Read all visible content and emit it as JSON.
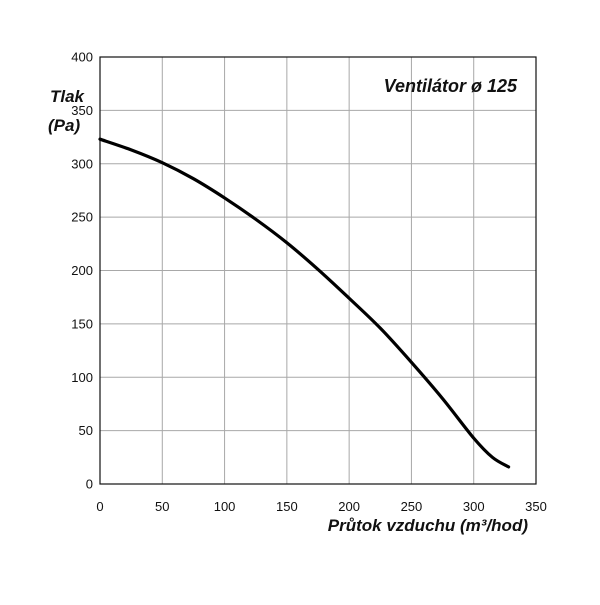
{
  "chart_data": {
    "type": "line",
    "title": "Ventilátor ø 125",
    "ylabel_line1": "Tlak",
    "ylabel_line2": "(Pa)",
    "xlabel": "Průtok vzduchu (m³/hod)",
    "xlim": [
      0,
      350
    ],
    "ylim": [
      0,
      400
    ],
    "x_ticks": [
      0,
      50,
      100,
      150,
      200,
      250,
      300,
      350
    ],
    "y_ticks": [
      0,
      50,
      100,
      150,
      200,
      250,
      300,
      350,
      400
    ],
    "grid": true,
    "series": [
      {
        "x": [
          0,
          25,
          50,
          75,
          100,
          125,
          150,
          175,
          200,
          225,
          250,
          275,
          300,
          315,
          328
        ],
        "y": [
          323,
          313,
          301,
          286,
          268,
          248,
          226,
          201,
          174,
          146,
          114,
          80,
          43,
          25,
          16
        ],
        "color": "#000000"
      }
    ]
  }
}
